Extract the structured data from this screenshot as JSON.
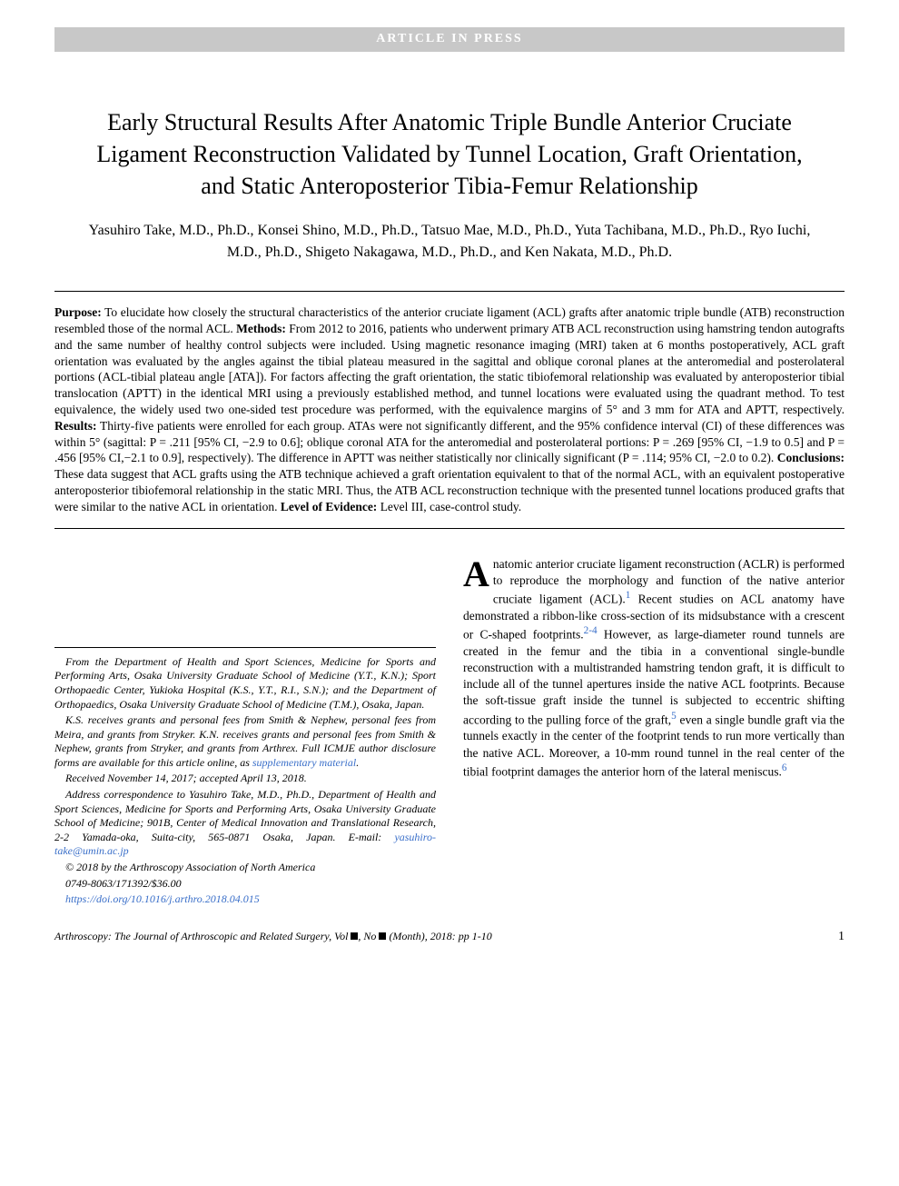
{
  "banner": "ARTICLE IN PRESS",
  "title": "Early Structural Results After Anatomic Triple Bundle Anterior Cruciate Ligament Reconstruction Validated by Tunnel Location, Graft Orientation, and Static Anteroposterior Tibia-Femur Relationship",
  "authors": "Yasuhiro Take, M.D., Ph.D., Konsei Shino, M.D., Ph.D., Tatsuo Mae, M.D., Ph.D., Yuta Tachibana, M.D., Ph.D., Ryo Iuchi, M.D., Ph.D., Shigeto Nakagawa, M.D., Ph.D., and Ken Nakata, M.D., Ph.D.",
  "abstract": {
    "purpose_label": "Purpose:",
    "purpose": " To elucidate how closely the structural characteristics of the anterior cruciate ligament (ACL) grafts after anatomic triple bundle (ATB) reconstruction resembled those of the normal ACL. ",
    "methods_label": "Methods:",
    "methods": " From 2012 to 2016, patients who underwent primary ATB ACL reconstruction using hamstring tendon autografts and the same number of healthy control subjects were included. Using magnetic resonance imaging (MRI) taken at 6 months postoperatively, ACL graft orientation was evaluated by the angles against the tibial plateau measured in the sagittal and oblique coronal planes at the anteromedial and posterolateral portions (ACL-tibial plateau angle [ATA]). For factors affecting the graft orientation, the static tibiofemoral relationship was evaluated by anteroposterior tibial translocation (APTT) in the identical MRI using a previously established method, and tunnel locations were evaluated using the quadrant method. To test equivalence, the widely used two one-sided test procedure was performed, with the equivalence margins of 5° and 3 mm for ATA and APTT, respectively. ",
    "results_label": "Results:",
    "results": " Thirty-five patients were enrolled for each group. ATAs were not significantly different, and the 95% confidence interval (CI) of these differences was within 5° (sagittal: P = .211 [95% CI, −2.9 to 0.6]; oblique coronal ATA for the anteromedial and posterolateral portions: P = .269 [95% CI, −1.9 to 0.5] and P = .456 [95% CI,−2.1 to 0.9], respectively). The difference in APTT was neither statistically nor clinically significant (P = .114; 95% CI, −2.0 to 0.2). ",
    "conclusions_label": "Conclusions:",
    "conclusions": " These data suggest that ACL grafts using the ATB technique achieved a graft orientation equivalent to that of the normal ACL, with an equivalent postoperative anteroposterior tibiofemoral relationship in the static MRI. Thus, the ATB ACL reconstruction technique with the presented tunnel locations produced grafts that were similar to the native ACL in orientation. ",
    "loe_label": "Level of Evidence:",
    "loe": " Level III, case-control study."
  },
  "footnotes": {
    "affil": "From the Department of Health and Sport Sciences, Medicine for Sports and Performing Arts, Osaka University Graduate School of Medicine (Y.T., K.N.); Sport Orthopaedic Center, Yukioka Hospital (K.S., Y.T., R.I., S.N.); and the Department of Orthopaedics, Osaka University Graduate School of Medicine (T.M.), Osaka, Japan.",
    "coi1": "K.S. receives grants and personal fees from Smith & Nephew, personal fees from Meira, and grants from Stryker. K.N. receives grants and personal fees from Smith & Nephew, grants from Stryker, and grants from Arthrex. Full ICMJE author disclosure forms are available for this article online, as ",
    "coi_link": "supplementary material",
    "coi2": ".",
    "received": "Received November 14, 2017; accepted April 13, 2018.",
    "corr1": "Address correspondence to Yasuhiro Take, M.D., Ph.D., Department of Health and Sport Sciences, Medicine for Sports and Performing Arts, Osaka University Graduate School of Medicine; 901B, Center of Medical Innovation and Translational Research, 2-2 Yamada-oka, Suita-city, 565-0871 Osaka, Japan. E-mail: ",
    "corr_email": "yasuhiro-take@umin.ac.jp",
    "copyright": "© 2018 by the Arthroscopy Association of North America",
    "issn": "0749-8063/171392/$36.00",
    "doi": "https://doi.org/10.1016/j.arthro.2018.04.015"
  },
  "body": {
    "dropcap": "A",
    "p1a": "natomic anterior cruciate ligament reconstruction (ACLR) is performed to reproduce the morphology and function of the native anterior cruciate ligament (ACL).",
    "ref1": "1",
    "p1b": " Recent studies on ACL anatomy have demonstrated a ribbon-like cross-section of its midsubstance with a crescent or C-shaped footprints.",
    "ref2": "2-4",
    "p1c": " However, as large-diameter round tunnels are created in the femur and the tibia in a conventional single-bundle reconstruction with a multistranded hamstring tendon graft, it is difficult to include all of the tunnel apertures inside the native ACL footprints. Because the soft-tissue graft inside the tunnel is subjected to eccentric shifting according to the pulling force of the graft,",
    "ref5": "5",
    "p1d": " even a single bundle graft via the tunnels exactly in the center of the footprint tends to run more vertically than the native ACL. Moreover, a 10-mm round tunnel in the real center of the tibial footprint damages the anterior horn of the lateral meniscus.",
    "ref6": "6"
  },
  "footer": {
    "journal": "Arthroscopy: The Journal of Arthroscopic and Related Surgery, Vol ",
    "vol_no": ", No ",
    "tail": " (Month), 2018: pp 1-10",
    "page": "1"
  },
  "colors": {
    "banner_bg": "#c8c8c8",
    "banner_fg": "#ffffff",
    "link": "#3a6fc9",
    "text": "#000000",
    "bg": "#ffffff"
  }
}
